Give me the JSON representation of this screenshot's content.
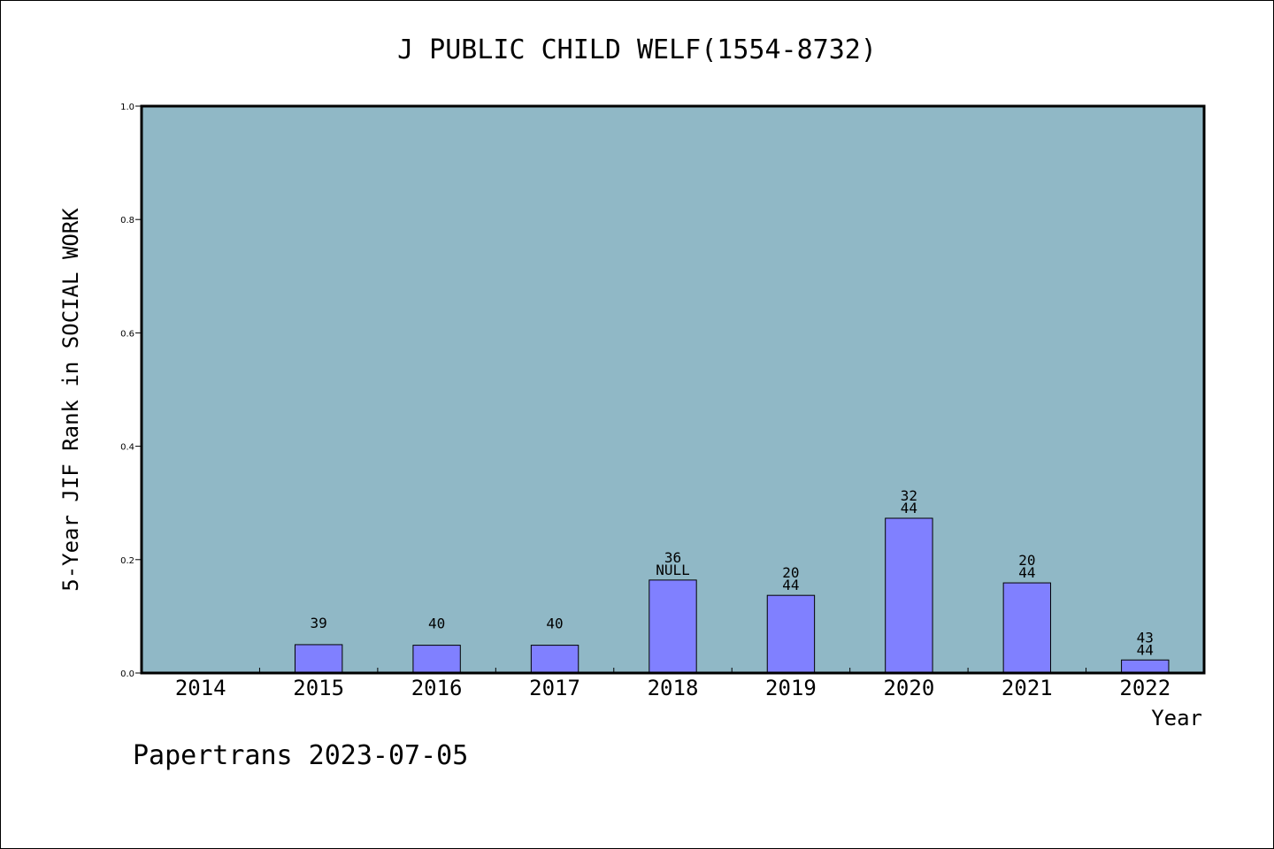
{
  "chart_data": {
    "type": "bar",
    "title": "J PUBLIC CHILD WELF(1554-8732)",
    "xlabel": "Year",
    "ylabel": "5-Year JIF Rank in SOCIAL WORK",
    "ylim": [
      0,
      1.0
    ],
    "yticks": [
      "0.0",
      "0.2",
      "0.4",
      "0.6",
      "0.8",
      "1.0"
    ],
    "categories": [
      "2014",
      "2015",
      "2016",
      "2017",
      "2018",
      "2019",
      "2020",
      "2021",
      "2022"
    ],
    "values": [
      null,
      0.05,
      0.049,
      0.049,
      0.164,
      0.137,
      0.273,
      0.159,
      0.023
    ],
    "labels": [
      [],
      [
        "39"
      ],
      [
        "40"
      ],
      [
        "40"
      ],
      [
        "36",
        "NULL"
      ],
      [
        "20",
        "44"
      ],
      [
        "32",
        "44"
      ],
      [
        "20",
        "44"
      ],
      [
        "43",
        "44"
      ]
    ],
    "grid": false,
    "plot_background": "#90b8c6",
    "bar_color": "#8080ff"
  },
  "footer": "Papertrans 2023-07-05"
}
